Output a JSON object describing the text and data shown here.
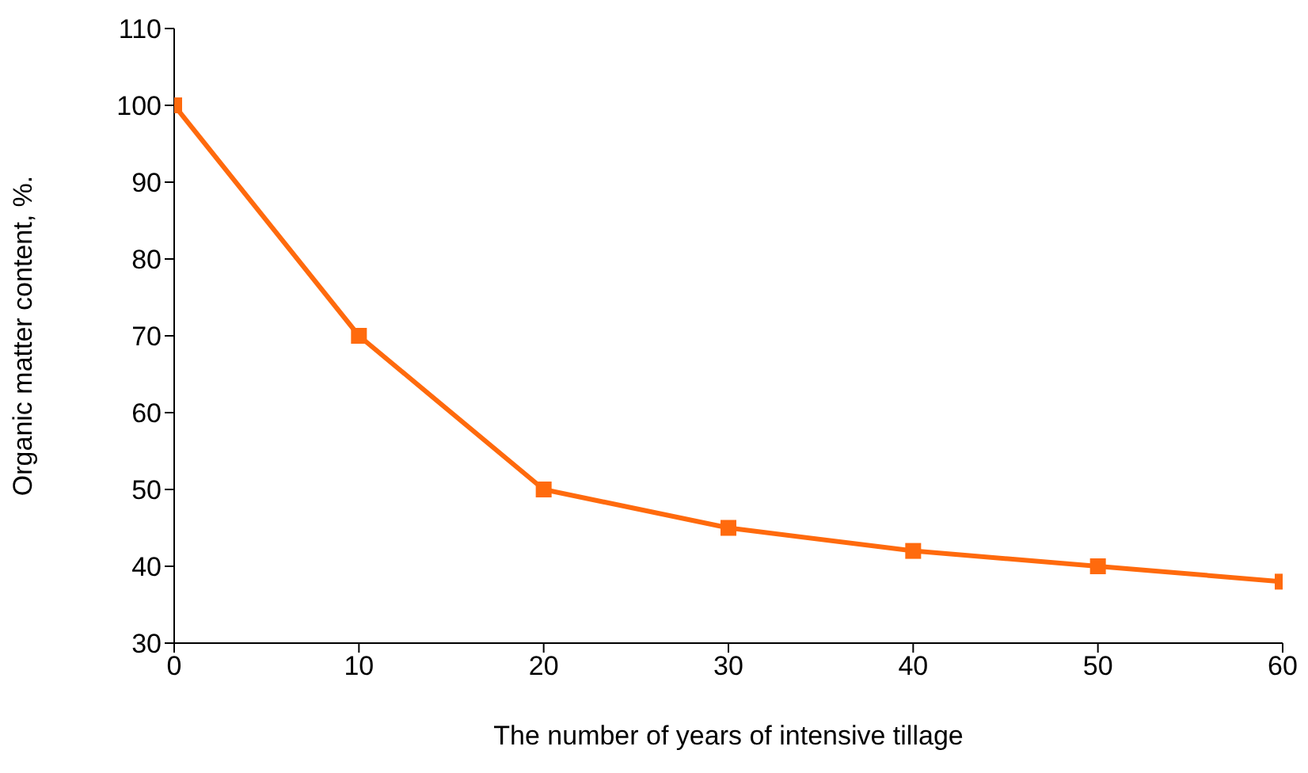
{
  "chart_data": {
    "type": "line",
    "xlabel": "The number of years of intensive tillage",
    "ylabel": "Organic matter content, %.",
    "x": [
      0,
      10,
      20,
      30,
      40,
      50,
      60
    ],
    "series": [
      {
        "color": "#ff6a0d",
        "values": [
          100,
          70,
          50,
          45,
          42,
          40,
          38
        ]
      }
    ],
    "xlim": [
      0,
      60
    ],
    "xticks": [
      0,
      10,
      20,
      30,
      40,
      50,
      60
    ],
    "ylim": [
      30,
      110
    ],
    "yticks": [
      30,
      40,
      50,
      60,
      70,
      80,
      90,
      100,
      110
    ],
    "grid": false,
    "legend": false,
    "marker": "square",
    "line_style": "solid"
  }
}
